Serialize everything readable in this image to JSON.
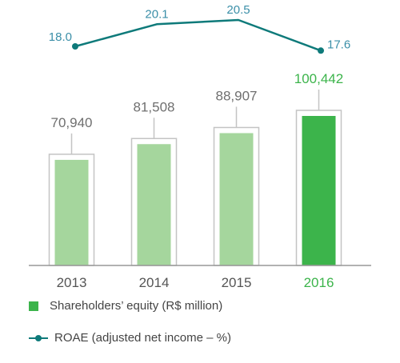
{
  "chart_data": {
    "type": "bar",
    "categories": [
      "2013",
      "2014",
      "2015",
      "2016"
    ],
    "series": [
      {
        "name": "Shareholders’ equity (R$ million)",
        "kind": "bar",
        "values": [
          70940,
          81508,
          88907,
          100442
        ],
        "labels": [
          "70,940",
          "81,508",
          "88,907",
          "100,442"
        ]
      },
      {
        "name": "ROAE (adjusted net income – %)",
        "kind": "line",
        "values": [
          18.0,
          20.1,
          20.5,
          17.6
        ],
        "labels": [
          "18.0",
          "20.1",
          "20.5",
          "17.6"
        ]
      }
    ],
    "highlight_index": 3,
    "colors": {
      "bar": "#a5d69d",
      "bar_highlight": "#3cb44b",
      "bar_outline": "#c4c4c4",
      "line": "#0e7a7a",
      "line_label": "#3b8fa8",
      "value_label": "#6f6f6f",
      "highlight_text": "#3cb44b",
      "axis": "#999999",
      "tick_label": "#555555"
    },
    "grid": false
  },
  "legend": {
    "bar_label": "Shareholders’ equity (R$ million)",
    "line_label": "ROAE (adjusted net income – %)"
  }
}
